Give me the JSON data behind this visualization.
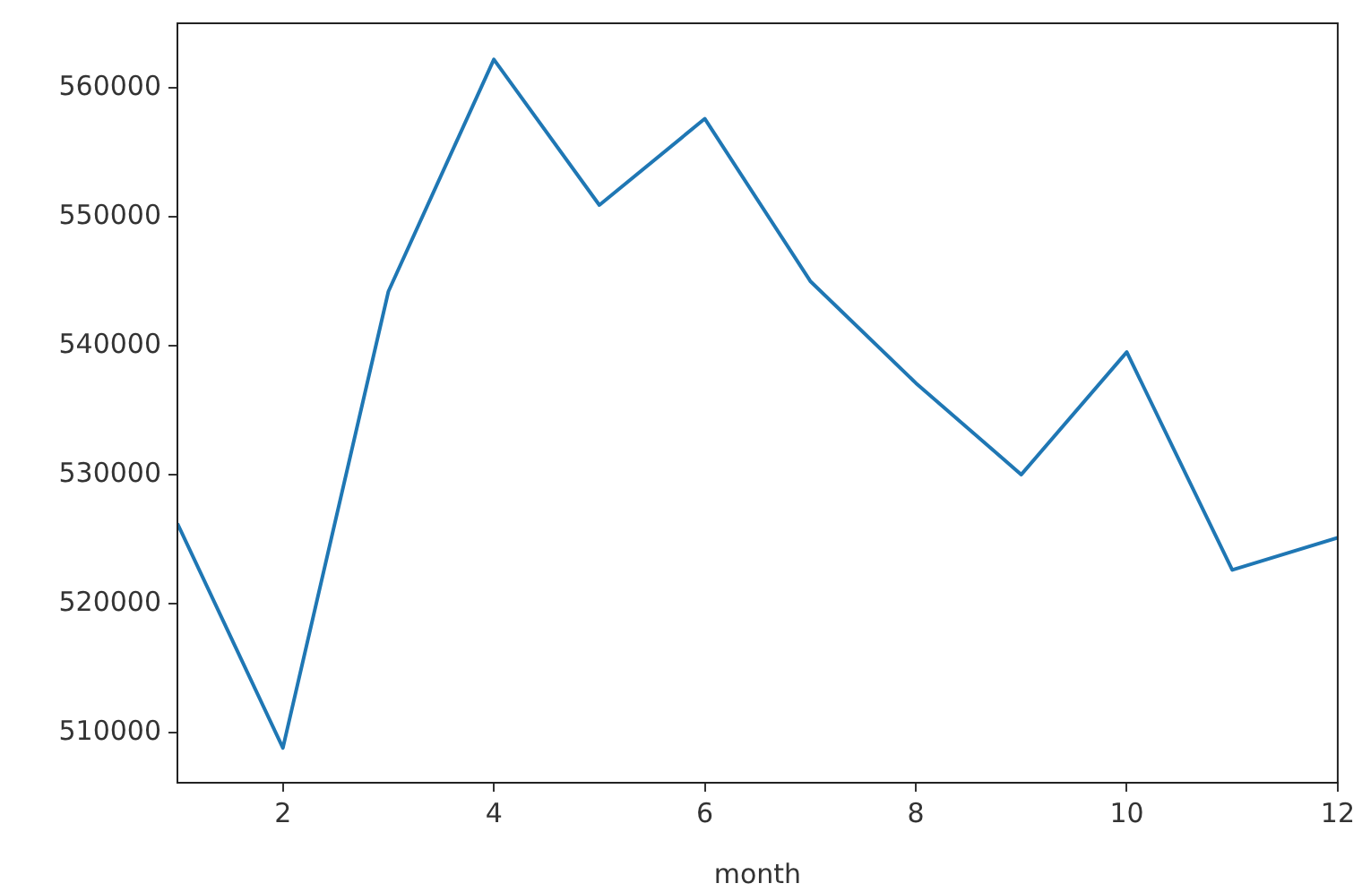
{
  "chart_data": {
    "type": "line",
    "xlabel": "month",
    "x": [
      1,
      2,
      3,
      4,
      5,
      6,
      7,
      8,
      9,
      10,
      11,
      12
    ],
    "series": [
      {
        "color": "#1f77b4",
        "values": [
          526200,
          508800,
          544200,
          562200,
          550900,
          557600,
          545000,
          537100,
          530000,
          539500,
          522600,
          525100
        ]
      }
    ],
    "xlim": [
      1,
      12
    ],
    "xticks": [
      2,
      4,
      6,
      8,
      10,
      12
    ],
    "ylim": [
      506100,
      565000
    ],
    "yticks": [
      510000,
      520000,
      530000,
      540000,
      550000,
      560000
    ],
    "grid": false,
    "legend": false,
    "marker": "none",
    "line_style": "solid"
  }
}
